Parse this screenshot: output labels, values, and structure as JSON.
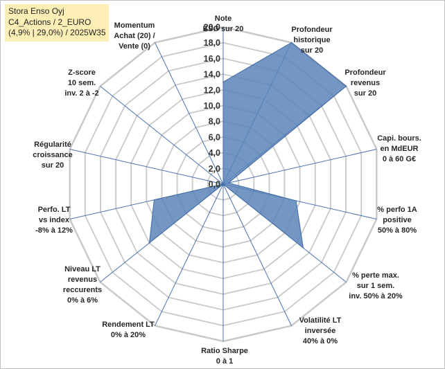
{
  "chart_data": {
    "type": "radar",
    "title_lines": [
      "Stora Enso Oyj",
      "C4_Actions / 2_EURO",
      "(4,9% | 29,0%) / 2025W35"
    ],
    "radial_ticks": [
      "0,0",
      "2,0",
      "4,0",
      "6,0",
      "8,0",
      "10,0",
      "12,0",
      "14,0",
      "16,0",
      "18,0",
      "20,0"
    ],
    "rlim": [
      0,
      20
    ],
    "categories": [
      [
        "Note",
        "ESG sur 20"
      ],
      [
        "Profondeur",
        "historique",
        "sur 20"
      ],
      [
        "Profondeur",
        "revenus",
        "sur 20"
      ],
      [
        "Capi. bours.",
        "en MdEUR",
        "0 à 60 G€"
      ],
      [
        "% perfo 1A",
        "positive",
        "50% à 80%"
      ],
      [
        "% perte max.",
        "sur 1 sem.",
        "inv. 50% à 20%"
      ],
      [
        "Volatilité LT",
        "inversée",
        "40% à 0%"
      ],
      [
        "Ratio Sharpe",
        "0 à 1"
      ],
      [
        "Rendement LT",
        "0% à 20%"
      ],
      [
        "Niveau LT",
        "revenus",
        "reccurents",
        "0% à 6%"
      ],
      [
        "Perfo. LT",
        "vs index",
        "-8% à 12%"
      ],
      [
        "Régularité",
        "croissance",
        "sur 20"
      ],
      [
        "Z-score",
        "10 sem.",
        "inv. 2 à -2"
      ],
      [
        "Momentum",
        "Achat (20) /",
        "Vente (0)"
      ]
    ],
    "values": [
      13,
      20,
      20,
      0.7,
      9.5,
      13,
      0,
      0,
      0,
      12,
      9,
      0,
      0,
      0
    ],
    "colors": {
      "fill": "#5a84b8",
      "stroke": "#3f6aa3",
      "grid": "#c9c9c9",
      "spoke": "#4a72b0",
      "title_bg": "#fdeeb6"
    }
  }
}
